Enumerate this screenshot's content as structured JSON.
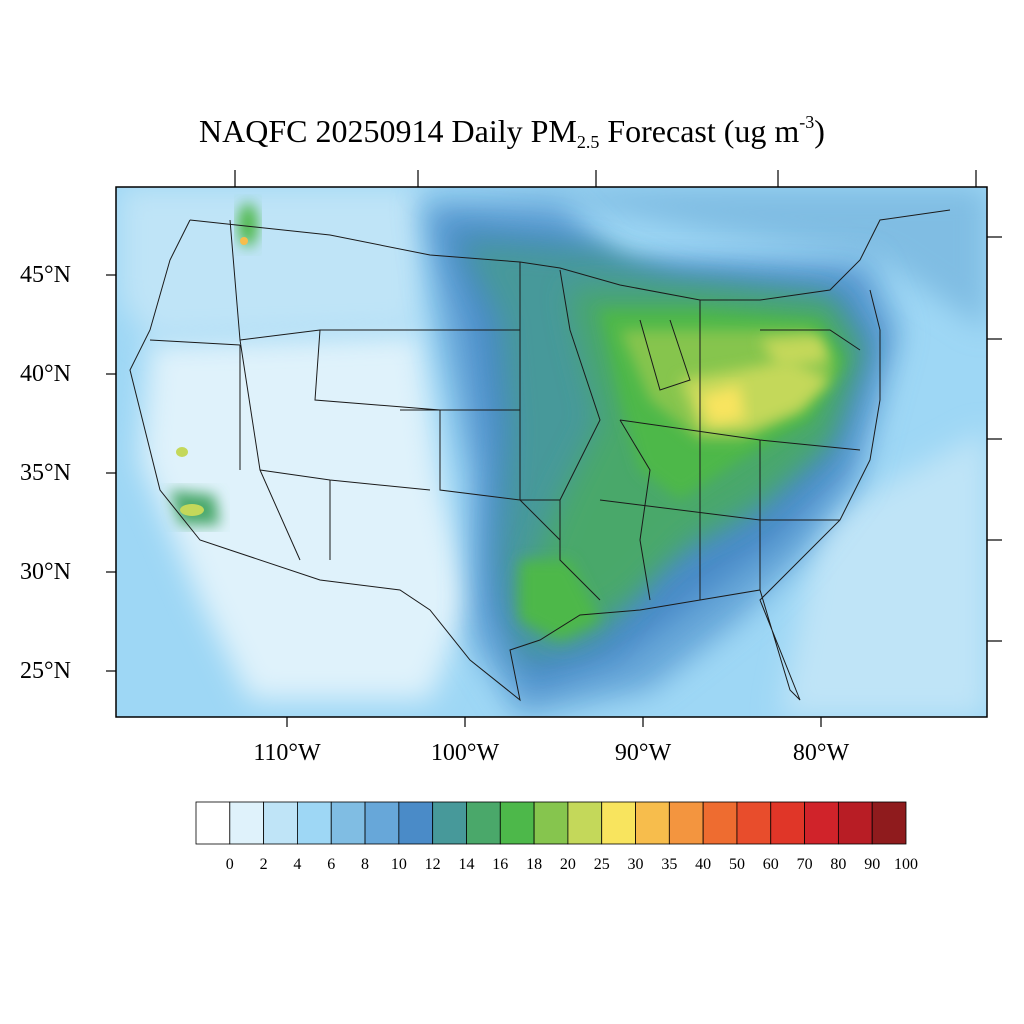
{
  "title": {
    "prefix": "NAQFC 20250914 Daily PM",
    "subscript": "2.5",
    "middle": " Forecast (ug m",
    "superscript": "-3",
    "suffix": ")"
  },
  "map": {
    "type": "filled-contour map",
    "variable": "Daily PM2.5",
    "date": "20250914",
    "units": "ug m-3",
    "lat_range": [
      22.7,
      49.5
    ],
    "lon_range": [
      -119.6,
      -70.5
    ],
    "lat_ticks": [
      "45°N",
      "40°N",
      "35°N",
      "30°N",
      "25°N"
    ],
    "lon_ticks": [
      "110°W",
      "100°W",
      "90°W",
      "80°W"
    ],
    "hotspots": [
      "Ohio Valley / Great Lakes",
      "Southern California",
      "Northern Idaho",
      "Southeast Texas"
    ]
  },
  "colorbar": {
    "labels": [
      "0",
      "2",
      "4",
      "6",
      "8",
      "10",
      "12",
      "14",
      "16",
      "18",
      "20",
      "25",
      "30",
      "35",
      "40",
      "50",
      "60",
      "70",
      "80",
      "90",
      "100"
    ],
    "colors": [
      "#ffffff",
      "#dff2fb",
      "#bfe4f7",
      "#9ed7f5",
      "#80bde3",
      "#67a7d9",
      "#4a8bc8",
      "#47999a",
      "#4aa86a",
      "#4db84a",
      "#86c54e",
      "#c4d85a",
      "#f8e45e",
      "#f7bd4c",
      "#f3953f",
      "#ee6c30",
      "#e84d2c",
      "#e03628",
      "#d0232a",
      "#b81d25",
      "#8f1b1d"
    ]
  }
}
